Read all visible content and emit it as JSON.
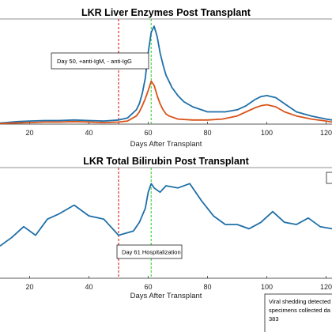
{
  "chart_data": [
    {
      "type": "line",
      "title": "LKR Liver Enzymes Post Transplant",
      "xlabel": "Days After Transplant",
      "ylabel": "",
      "xlim": [
        10,
        122
      ],
      "ylim": [
        0,
        100
      ],
      "xticks": [
        20,
        40,
        60,
        80,
        100,
        120
      ],
      "grid": false,
      "series": [
        {
          "color": "#1f6fa8",
          "x": [
            10,
            12,
            14,
            16,
            20,
            25,
            30,
            35,
            40,
            45,
            50,
            53,
            56,
            57,
            58,
            59,
            60,
            61,
            62,
            63,
            64,
            65,
            66,
            67,
            68,
            70,
            72,
            75,
            78,
            80,
            83,
            86,
            90,
            93,
            96,
            98,
            100,
            103,
            106,
            110,
            115,
            120,
            122
          ],
          "y": [
            1,
            1.5,
            2,
            2.5,
            3,
            3.5,
            3.5,
            4,
            3.5,
            3,
            4,
            6,
            14,
            20,
            30,
            45,
            70,
            90,
            96,
            86,
            70,
            58,
            48,
            42,
            36,
            28,
            22,
            17,
            14,
            12,
            12,
            12,
            14,
            18,
            24,
            27,
            28,
            26,
            20,
            12,
            8,
            5,
            4
          ]
        },
        {
          "color": "#d95319",
          "x": [
            10,
            14,
            20,
            25,
            30,
            35,
            40,
            45,
            50,
            53,
            56,
            57,
            58,
            59,
            60,
            61,
            62,
            63,
            64,
            65,
            66,
            67,
            70,
            75,
            80,
            85,
            90,
            93,
            96,
            98,
            100,
            103,
            106,
            110,
            115,
            120,
            122
          ],
          "y": [
            0.5,
            1,
            1.5,
            2,
            2,
            2.5,
            2,
            1.5,
            2,
            3,
            8,
            12,
            18,
            25,
            33,
            42,
            38,
            28,
            20,
            14,
            10,
            8,
            5,
            4,
            4,
            5,
            8,
            12,
            16,
            18,
            19,
            17,
            12,
            8,
            5,
            3,
            2
          ]
        }
      ],
      "reference_lines": [
        {
          "x": 50,
          "color": "#e0181b",
          "style": "dashed"
        },
        {
          "x": 61,
          "color": "#2fd62f",
          "style": "dashed"
        }
      ],
      "annotations": [
        {
          "text": "Day 50, +anti-IgM, - anti-IgG"
        }
      ]
    },
    {
      "type": "line",
      "title": "LKR Total Bilirubin Post Transplant",
      "xlabel": "Days After Transplant",
      "ylabel": "",
      "xlim": [
        10,
        122
      ],
      "ylim": [
        0,
        100
      ],
      "xticks": [
        20,
        40,
        60,
        80,
        100,
        120
      ],
      "grid": false,
      "series": [
        {
          "color": "#1f6fa8",
          "x": [
            10,
            14,
            18,
            22,
            26,
            30,
            35,
            40,
            45,
            50,
            55,
            57,
            59,
            60,
            61,
            62,
            64,
            66,
            70,
            74,
            78,
            82,
            86,
            90,
            94,
            98,
            102,
            106,
            110,
            114,
            118,
            122
          ],
          "y": [
            30,
            38,
            48,
            40,
            55,
            60,
            68,
            58,
            55,
            40,
            44,
            52,
            65,
            80,
            88,
            84,
            80,
            86,
            84,
            88,
            72,
            58,
            50,
            50,
            46,
            52,
            62,
            52,
            50,
            56,
            48,
            46
          ]
        }
      ],
      "reference_lines": [
        {
          "x": 50,
          "color": "#e0181b",
          "style": "dashed"
        },
        {
          "x": 61,
          "color": "#2fd62f",
          "style": "dashed"
        }
      ],
      "annotations": [
        {
          "text": "Day 61 Hospitalization"
        },
        {
          "text": "Viral shedding detected",
          "lines": [
            "Viral shedding detected",
            "specimens collected da",
            "383"
          ]
        }
      ]
    }
  ]
}
